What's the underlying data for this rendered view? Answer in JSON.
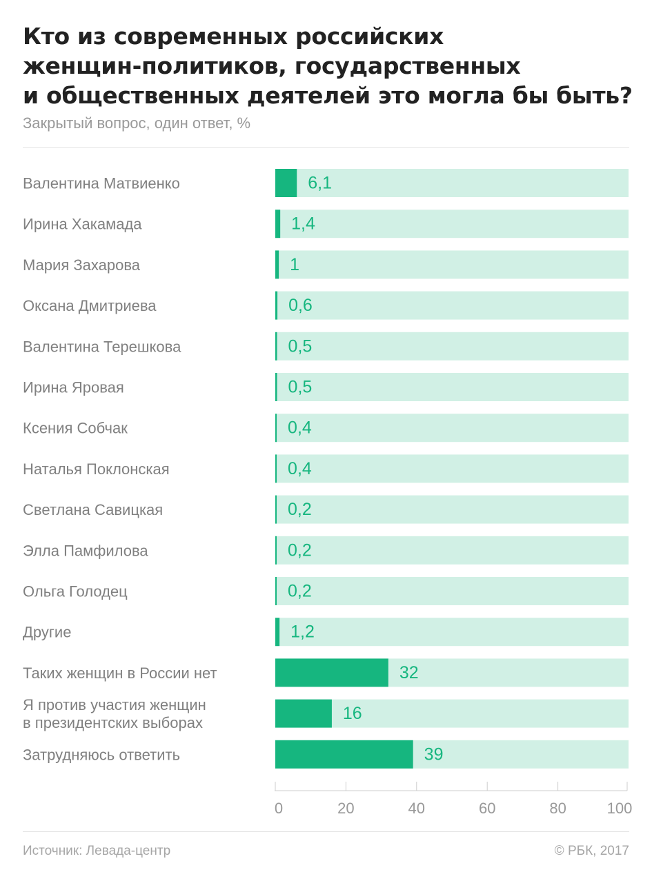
{
  "chart_data": {
    "type": "bar",
    "orientation": "horizontal",
    "title": "Кто из современных российских\nженщин-политиков, государственных\nи общественных деятелей это могла бы быть?",
    "subtitle": "Закрытый вопрос, один ответ, %",
    "categories": [
      "Валентина Матвиенко",
      "Ирина Хакамада",
      "Мария Захарова",
      "Оксана Дмитриева",
      "Валентина Терешкова",
      "Ирина Яровая",
      "Ксения Собчак",
      "Наталья Поклонская",
      "Светлана Савицкая",
      "Элла Памфилова",
      "Ольга Голодец",
      "Другие",
      "Таких женщин в России нет",
      "Я против участия женщин\nв президентских выборах",
      "Затрудняюсь ответить"
    ],
    "values": [
      6.1,
      1.4,
      1,
      0.6,
      0.5,
      0.5,
      0.4,
      0.4,
      0.2,
      0.2,
      0.2,
      1.2,
      32,
      16,
      39
    ],
    "value_labels": [
      "6,1",
      "1,4",
      "1",
      "0,6",
      "0,5",
      "0,5",
      "0,4",
      "0,4",
      "0,2",
      "0,2",
      "0,2",
      "1,2",
      "32",
      "16",
      "39"
    ],
    "xlim": [
      0,
      100
    ],
    "xticks": [
      0,
      20,
      40,
      60,
      80,
      100
    ],
    "xtick_labels": [
      "0",
      "20",
      "40",
      "60",
      "80",
      "100"
    ],
    "xlabel": "",
    "ylabel": "",
    "grid": false,
    "legend": "none",
    "colors": {
      "bar": "#16b67f",
      "track": "#d1f0e5",
      "value_label": "#16b67f"
    }
  },
  "footer": {
    "source": "Источник: Левада-центр",
    "copyright": "© РБК, 2017"
  }
}
